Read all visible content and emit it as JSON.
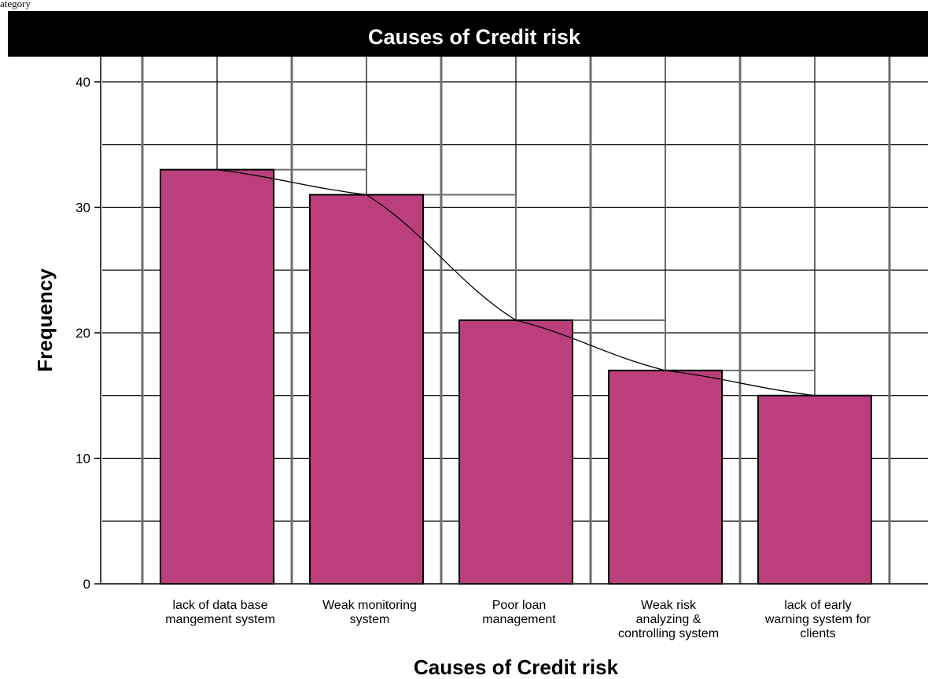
{
  "page": {
    "top_note": "ategory",
    "title": "Causes of Credit risk"
  },
  "colors": {
    "bar": "#bb3f7c",
    "title_bar": "#000000",
    "title_text": "#ffffff"
  },
  "chart_data": {
    "type": "bar",
    "title": "Causes of Credit risk",
    "xlabel": "Causes of Credit risk",
    "ylabel": "Frequency",
    "ylim": [
      0,
      40
    ],
    "yticks": [
      0,
      10,
      20,
      30,
      40
    ],
    "grid": true,
    "overlay": "line connecting bar tops with step outlines",
    "categories": [
      "lack of data base mangement system",
      "Weak monitoring system",
      "Poor loan management",
      "Weak risk analyzing & controlling system",
      "lack of early warning system for clients"
    ],
    "category_lines": [
      [
        "lack of data base",
        "mangement system"
      ],
      [
        "Weak monitoring",
        "system"
      ],
      [
        "Poor loan",
        "management"
      ],
      [
        "Weak risk",
        "analyzing &",
        "controlling system"
      ],
      [
        "lack of early",
        "warning system for",
        "clients"
      ]
    ],
    "values": [
      33,
      31,
      21,
      17,
      15
    ]
  }
}
